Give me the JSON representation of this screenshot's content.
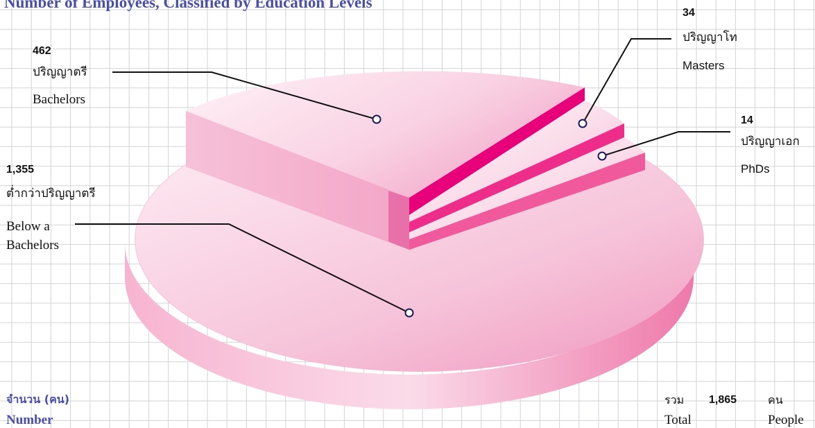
{
  "chart_data": {
    "type": "pie",
    "title": "Number of Employees, Classified by Education Levels",
    "slices": [
      {
        "value": "1,355",
        "label_th": "ต่ำกว่าปริญญาตรี",
        "label_en": "Below a Bachelors",
        "n": 1355
      },
      {
        "value": "462",
        "label_th": "ปริญญาตรี",
        "label_en": "Bachelors",
        "n": 462
      },
      {
        "value": "34",
        "label_th": "ปริญญาโท",
        "label_en": "Masters",
        "n": 34
      },
      {
        "value": "14",
        "label_th": "ปริญญาเอก",
        "label_en": "PhDs",
        "n": 14
      }
    ],
    "unit_th": "จำนวน (คน)",
    "unit_en": "Number",
    "total": {
      "label_th": "รวม",
      "label_en": "Total",
      "value": "1,865",
      "unit_th": "คน",
      "unit_en": "People"
    },
    "colors": {
      "main": "#f4a7c8",
      "accent": "#e8006f",
      "pale": "#fbe3ee",
      "title": "#4a4fa6"
    }
  }
}
